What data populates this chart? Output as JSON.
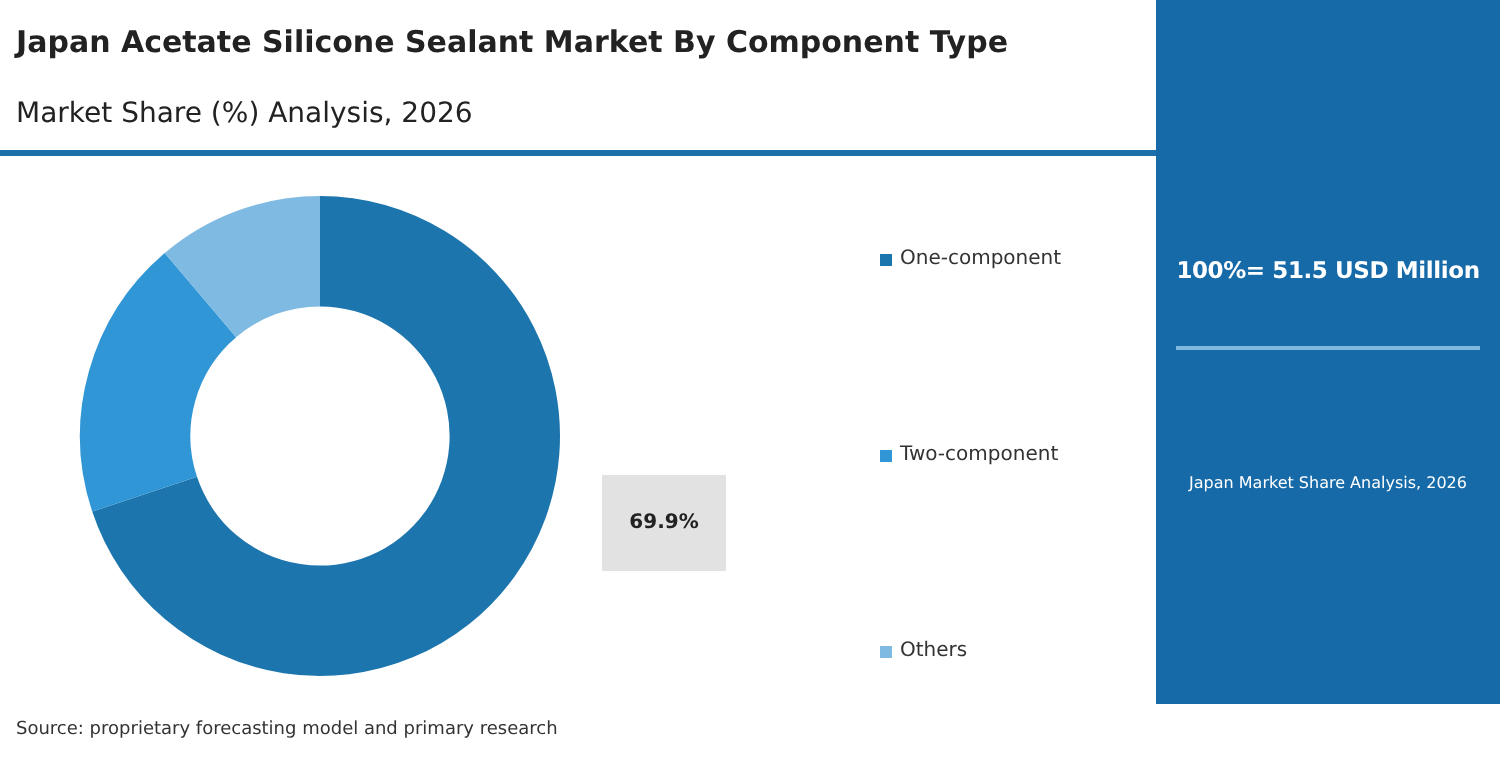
{
  "chart_data": {
    "type": "donut",
    "title": "Japan Acetate Silicone Sealant Market By Component Type",
    "subtitle": "Market Share (%) Analysis, 2026",
    "categories": [
      "One-component",
      "Two-component",
      "Others"
    ],
    "values": [
      69.9,
      18.9,
      11.2
    ],
    "colors": [
      "#1c75ad",
      "#3096d6",
      "#7fbae2"
    ],
    "value_labels": [
      "69.9%",
      null,
      null
    ],
    "legend": "right",
    "annotations": [
      "100%= 51.5 USD Million",
      "Japan Market Share Analysis, 2026",
      "Source: proprietary forecasting model and primary research"
    ]
  }
}
